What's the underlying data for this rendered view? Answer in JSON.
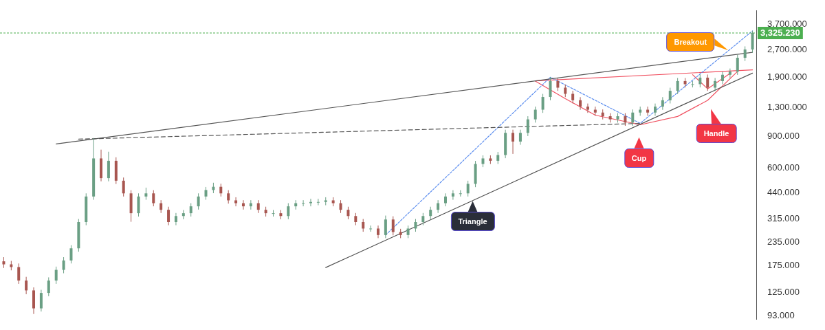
{
  "chart_data": {
    "type": "candlestick",
    "log": "y",
    "tick_labels": "y",
    "ylim": [
      89,
      4400
    ],
    "yticks": [
      {
        "value": 93,
        "label": "93.000"
      },
      {
        "value": 125,
        "label": "125.000"
      },
      {
        "value": 175,
        "label": "175.000"
      },
      {
        "value": 235,
        "label": "235.000"
      },
      {
        "value": 315,
        "label": "315.000"
      },
      {
        "value": 440,
        "label": "440.000"
      },
      {
        "value": 600,
        "label": "600.000"
      },
      {
        "value": 900,
        "label": "900.000"
      },
      {
        "value": 1300,
        "label": "1,300.000"
      },
      {
        "value": 1900,
        "label": "1,900.000"
      },
      {
        "value": 2700,
        "label": "2,700.000"
      },
      {
        "value": 3700,
        "label": "3,700.000"
      }
    ],
    "categories": [
      null,
      null,
      null,
      null,
      null,
      null,
      null,
      null,
      null,
      null,
      null,
      null,
      null,
      null,
      null,
      null,
      null,
      null,
      null,
      null,
      null,
      null,
      null,
      null,
      null,
      null,
      null,
      null,
      null,
      null,
      null,
      null,
      null,
      null,
      null,
      null,
      null,
      null,
      null,
      null,
      null,
      null,
      null,
      null,
      null,
      null,
      null,
      null,
      null,
      null,
      null,
      null,
      null,
      null,
      null,
      null,
      null,
      null,
      null,
      null,
      null,
      null,
      null,
      null,
      null,
      null,
      null,
      null,
      null,
      null,
      null,
      null,
      null,
      null,
      null,
      null,
      null,
      null,
      null,
      null,
      null,
      null,
      null,
      null,
      null,
      null,
      null,
      null,
      null,
      null,
      null,
      null,
      null,
      null,
      null,
      null,
      null,
      null,
      null,
      null,
      null
    ],
    "ohlc": [
      [
        185,
        195,
        170,
        178
      ],
      [
        178,
        186,
        165,
        172
      ],
      [
        172,
        180,
        139,
        145
      ],
      [
        145,
        152,
        122,
        128
      ],
      [
        128,
        133,
        95,
        102
      ],
      [
        102,
        129,
        98,
        124
      ],
      [
        124,
        151,
        119,
        145
      ],
      [
        145,
        173,
        139,
        166
      ],
      [
        166,
        195,
        159,
        187
      ],
      [
        187,
        227,
        180,
        218
      ],
      [
        218,
        316,
        209,
        304
      ],
      [
        304,
        437,
        292,
        420
      ],
      [
        420,
        880,
        403,
        680
      ],
      [
        680,
        760,
        509,
        530
      ],
      [
        530,
        740,
        509,
        660
      ],
      [
        660,
        690,
        492,
        513
      ],
      [
        513,
        534,
        420,
        437
      ],
      [
        437,
        455,
        305,
        340
      ],
      [
        340,
        437,
        326,
        420
      ],
      [
        420,
        470,
        403,
        437
      ],
      [
        437,
        455,
        371,
        386
      ],
      [
        386,
        401,
        341,
        355
      ],
      [
        355,
        369,
        292,
        304
      ],
      [
        304,
        341,
        292,
        328
      ],
      [
        328,
        354,
        315,
        340
      ],
      [
        340,
        386,
        326,
        371
      ],
      [
        371,
        437,
        356,
        420
      ],
      [
        420,
        474,
        403,
        456
      ],
      [
        456,
        500,
        438,
        475
      ],
      [
        475,
        494,
        420,
        437
      ],
      [
        437,
        455,
        384,
        400
      ],
      [
        400,
        416,
        371,
        386
      ],
      [
        386,
        401,
        356,
        371
      ],
      [
        371,
        401,
        356,
        386
      ],
      [
        386,
        401,
        341,
        355
      ],
      [
        355,
        369,
        326,
        340
      ],
      [
        340,
        354,
        326,
        340
      ],
      [
        340,
        354,
        315,
        328
      ],
      [
        328,
        386,
        315,
        371
      ],
      [
        371,
        401,
        356,
        386
      ],
      [
        386,
        401,
        371,
        386
      ],
      [
        386,
        408,
        371,
        392
      ],
      [
        392,
        408,
        376,
        392
      ],
      [
        392,
        416,
        376,
        400
      ],
      [
        400,
        416,
        371,
        386
      ],
      [
        386,
        401,
        341,
        355
      ],
      [
        355,
        369,
        315,
        328
      ],
      [
        328,
        341,
        292,
        304
      ],
      [
        304,
        316,
        269,
        280
      ],
      [
        280,
        291,
        269,
        280
      ],
      [
        280,
        291,
        248,
        258
      ],
      [
        258,
        330,
        248,
        314
      ],
      [
        314,
        327,
        257,
        268
      ],
      [
        268,
        279,
        248,
        258
      ],
      [
        258,
        291,
        248,
        280
      ],
      [
        280,
        316,
        269,
        304
      ],
      [
        304,
        341,
        292,
        328
      ],
      [
        328,
        369,
        315,
        355
      ],
      [
        355,
        401,
        341,
        386
      ],
      [
        386,
        437,
        371,
        420
      ],
      [
        420,
        455,
        403,
        437
      ],
      [
        437,
        455,
        420,
        437
      ],
      [
        437,
        513,
        420,
        493
      ],
      [
        493,
        659,
        473,
        634
      ],
      [
        634,
        707,
        609,
        680
      ],
      [
        680,
        707,
        634,
        660
      ],
      [
        660,
        738,
        634,
        710
      ],
      [
        710,
        978,
        682,
        940
      ],
      [
        940,
        978,
        720,
        842
      ],
      [
        842,
        978,
        808,
        940
      ],
      [
        940,
        1160,
        902,
        1115
      ],
      [
        1115,
        1310,
        1070,
        1260
      ],
      [
        1260,
        1539,
        1210,
        1480
      ],
      [
        1480,
        1900,
        1421,
        1810
      ],
      [
        1810,
        1882,
        1598,
        1665
      ],
      [
        1665,
        1732,
        1478,
        1540
      ],
      [
        1540,
        1602,
        1363,
        1420
      ],
      [
        1420,
        1477,
        1258,
        1310
      ],
      [
        1310,
        1362,
        1210,
        1260
      ],
      [
        1260,
        1310,
        1166,
        1215
      ],
      [
        1215,
        1264,
        1114,
        1160
      ],
      [
        1160,
        1206,
        1070,
        1115
      ],
      [
        1115,
        1206,
        1070,
        1160
      ],
      [
        1160,
        1206,
        1027,
        1070
      ],
      [
        1070,
        1264,
        1027,
        1215
      ],
      [
        1215,
        1310,
        1166,
        1260
      ],
      [
        1260,
        1310,
        1166,
        1215
      ],
      [
        1215,
        1362,
        1166,
        1310
      ],
      [
        1310,
        1477,
        1258,
        1420
      ],
      [
        1420,
        1664,
        1363,
        1600
      ],
      [
        1600,
        1882,
        1536,
        1810
      ],
      [
        1810,
        1882,
        1670,
        1740
      ],
      [
        1740,
        1810,
        1670,
        1740
      ],
      [
        1740,
        1966,
        1670,
        1890
      ],
      [
        1890,
        1966,
        1598,
        1665
      ],
      [
        1665,
        1882,
        1598,
        1810
      ],
      [
        1810,
        2038,
        1738,
        1960
      ],
      [
        1960,
        2122,
        1882,
        2040
      ],
      [
        2040,
        2527,
        1958,
        2430
      ],
      [
        2430,
        2808,
        2333,
        2700
      ],
      [
        2700,
        3420,
        2592,
        3325.23
      ]
    ],
    "series": [
      {
        "type": "line",
        "color": "#555555",
        "line_style": "solid",
        "values": [
          null,
          null,
          null,
          null,
          null,
          null,
          null,
          817,
          null,
          null,
          null,
          null,
          null,
          null,
          null,
          null,
          null,
          null,
          null,
          null,
          null,
          null,
          null,
          null,
          null,
          null,
          null,
          null,
          null,
          null,
          null,
          null,
          null,
          null,
          null,
          null,
          null,
          null,
          null,
          null,
          null,
          null,
          null,
          null,
          null,
          null,
          null,
          null,
          null,
          null,
          null,
          null,
          null,
          null,
          null,
          null,
          null,
          null,
          null,
          null,
          null,
          null,
          null,
          null,
          null,
          null,
          null,
          null,
          null,
          null,
          null,
          null,
          null,
          null,
          null,
          null,
          null,
          null,
          null,
          null,
          null,
          null,
          null,
          null,
          null,
          null,
          null,
          null,
          null,
          null,
          null,
          null,
          null,
          null,
          null,
          null,
          null,
          null,
          null,
          null,
          2605
        ]
      },
      {
        "type": "line",
        "color": "#555555",
        "line_style": "solid",
        "values": [
          null,
          null,
          null,
          null,
          null,
          null,
          null,
          null,
          null,
          null,
          null,
          null,
          null,
          null,
          null,
          null,
          null,
          null,
          null,
          null,
          null,
          null,
          null,
          null,
          null,
          null,
          null,
          null,
          null,
          null,
          null,
          null,
          null,
          null,
          null,
          null,
          null,
          null,
          null,
          null,
          null,
          null,
          null,
          171,
          null,
          null,
          null,
          null,
          null,
          null,
          null,
          null,
          null,
          null,
          null,
          null,
          null,
          null,
          null,
          null,
          null,
          null,
          null,
          null,
          null,
          null,
          null,
          null,
          null,
          null,
          null,
          null,
          null,
          null,
          null,
          null,
          null,
          null,
          null,
          null,
          null,
          null,
          null,
          null,
          null,
          null,
          null,
          null,
          null,
          null,
          null,
          null,
          null,
          null,
          null,
          null,
          null,
          null,
          null,
          null,
          2001
        ]
      },
      {
        "type": "line",
        "color": "#555555",
        "line_style": "dashed",
        "values": [
          null,
          null,
          null,
          null,
          null,
          null,
          null,
          null,
          null,
          null,
          868,
          null,
          null,
          null,
          null,
          null,
          null,
          null,
          null,
          null,
          null,
          null,
          null,
          null,
          null,
          null,
          null,
          null,
          null,
          null,
          null,
          null,
          null,
          null,
          null,
          null,
          null,
          null,
          null,
          null,
          null,
          null,
          null,
          null,
          null,
          null,
          null,
          null,
          null,
          null,
          null,
          null,
          null,
          null,
          null,
          null,
          null,
          null,
          null,
          null,
          null,
          null,
          null,
          null,
          null,
          null,
          null,
          null,
          null,
          null,
          null,
          null,
          null,
          null,
          null,
          null,
          null,
          null,
          null,
          null,
          null,
          null,
          null,
          null,
          null,
          1059,
          null,
          null,
          null,
          null,
          null,
          null,
          null,
          null,
          null,
          null,
          null,
          null,
          null,
          null,
          null
        ]
      },
      {
        "type": "line",
        "color": "#5b8def",
        "line_style": "dotted",
        "values": [
          null,
          null,
          null,
          null,
          null,
          null,
          null,
          null,
          null,
          null,
          null,
          null,
          null,
          null,
          null,
          null,
          null,
          null,
          null,
          null,
          null,
          null,
          null,
          null,
          null,
          null,
          null,
          null,
          null,
          null,
          null,
          null,
          null,
          null,
          null,
          null,
          null,
          null,
          null,
          null,
          null,
          null,
          null,
          null,
          null,
          null,
          null,
          null,
          null,
          null,
          null,
          258,
          null,
          null,
          null,
          null,
          null,
          null,
          null,
          null,
          null,
          null,
          null,
          null,
          null,
          null,
          null,
          null,
          null,
          null,
          null,
          null,
          null,
          1900,
          null,
          null,
          null,
          null,
          null,
          null,
          null,
          null,
          null,
          null,
          null,
          1060,
          null,
          null,
          null,
          null,
          null,
          null,
          null,
          null,
          null,
          null,
          null,
          null,
          null,
          null,
          3416
        ]
      },
      {
        "type": "line",
        "color": "#f05060",
        "line_style": "solid",
        "values": [
          null,
          null,
          null,
          null,
          null,
          null,
          null,
          null,
          null,
          null,
          null,
          null,
          null,
          null,
          null,
          null,
          null,
          null,
          null,
          null,
          null,
          null,
          null,
          null,
          null,
          null,
          null,
          null,
          null,
          null,
          null,
          null,
          null,
          null,
          null,
          null,
          null,
          null,
          null,
          null,
          null,
          null,
          null,
          null,
          null,
          null,
          null,
          null,
          null,
          null,
          null,
          null,
          null,
          null,
          null,
          null,
          null,
          null,
          null,
          null,
          null,
          null,
          null,
          null,
          null,
          null,
          null,
          null,
          null,
          null,
          null,
          1815,
          null,
          null,
          null,
          null,
          null,
          null,
          null,
          null,
          null,
          null,
          null,
          null,
          null,
          null,
          null,
          null,
          null,
          null,
          null,
          null,
          null,
          null,
          null,
          null,
          null,
          null,
          null,
          null,
          2085
        ]
      },
      {
        "type": "line",
        "color": "#f05060",
        "line_style": "solid",
        "values": [
          null,
          null,
          null,
          null,
          null,
          null,
          null,
          null,
          null,
          null,
          null,
          null,
          null,
          null,
          null,
          null,
          null,
          null,
          null,
          null,
          null,
          null,
          null,
          null,
          null,
          null,
          null,
          null,
          null,
          null,
          null,
          null,
          null,
          null,
          null,
          null,
          null,
          null,
          null,
          null,
          null,
          null,
          null,
          null,
          null,
          null,
          null,
          null,
          null,
          null,
          null,
          null,
          null,
          null,
          null,
          null,
          null,
          null,
          null,
          null,
          null,
          null,
          null,
          null,
          null,
          null,
          null,
          null,
          null,
          null,
          null,
          1810,
          null,
          null,
          null,
          1450,
          null,
          null,
          null,
          1176,
          null,
          null,
          null,
          null,
          null,
          1041,
          null,
          null,
          null,
          null,
          1157,
          null,
          null,
          null,
          1418,
          null,
          null,
          null,
          2045,
          null,
          null
        ]
      },
      {
        "type": "line",
        "color": "#f05060",
        "line_style": "solid",
        "values": [
          null,
          null,
          null,
          null,
          null,
          null,
          null,
          null,
          null,
          null,
          null,
          null,
          null,
          null,
          null,
          null,
          null,
          null,
          null,
          null,
          null,
          null,
          null,
          null,
          null,
          null,
          null,
          null,
          null,
          null,
          null,
          null,
          null,
          null,
          null,
          null,
          null,
          null,
          null,
          null,
          null,
          null,
          null,
          null,
          null,
          null,
          null,
          null,
          null,
          null,
          null,
          null,
          null,
          null,
          null,
          null,
          null,
          null,
          null,
          null,
          null,
          null,
          null,
          null,
          null,
          null,
          null,
          null,
          null,
          null,
          null,
          null,
          null,
          null,
          null,
          null,
          null,
          null,
          null,
          null,
          null,
          null,
          null,
          null,
          null,
          null,
          null,
          null,
          null,
          null,
          null,
          null,
          1963,
          null,
          1641,
          null,
          null,
          1995,
          null,
          null,
          null
        ]
      }
    ],
    "ref_lines": [
      {
        "axis": "y",
        "value": 3325.23,
        "label": "3,325.230",
        "color": "#4caf50",
        "line_style": "dotted"
      }
    ],
    "annotations": [
      "Triangle",
      "Cup",
      "Handle",
      "Breakout"
    ]
  }
}
